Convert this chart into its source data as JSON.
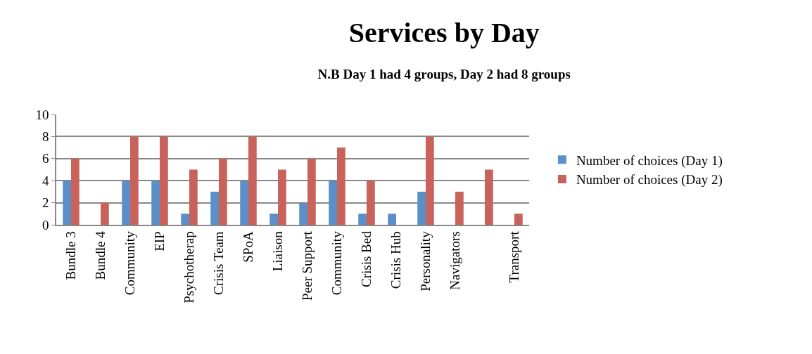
{
  "chart_data": {
    "type": "bar",
    "title": "Services by Day",
    "subtitle": "N.B Day 1 had 4 groups, Day 2 had 8 groups",
    "categories": [
      "Bundle 3",
      "Bundle 4",
      "Community",
      "EIP",
      "Psychotherap",
      "Crisis Team",
      "SPoA",
      "Liaison",
      "Peer Support",
      "Community",
      "Crisis Bed",
      "Crisis Hub",
      "Personality",
      "Navigators",
      null,
      "Transport"
    ],
    "series": [
      {
        "name": "Number of choices (Day 1)",
        "color": "#5b8fc7",
        "values": [
          4,
          null,
          4,
          4,
          1,
          3,
          4,
          1,
          2,
          4,
          1,
          1,
          3,
          null,
          null,
          null
        ]
      },
      {
        "name": "Number of choices (Day 2)",
        "color": "#c9625a",
        "values": [
          6,
          2,
          8,
          8,
          5,
          6,
          8,
          5,
          6,
          7,
          4,
          null,
          8,
          3,
          5,
          1
        ]
      }
    ],
    "ylim": [
      0,
      10
    ],
    "yticks": [
      0,
      2,
      4,
      6,
      8,
      10
    ],
    "grid": "y",
    "legend": "right"
  }
}
